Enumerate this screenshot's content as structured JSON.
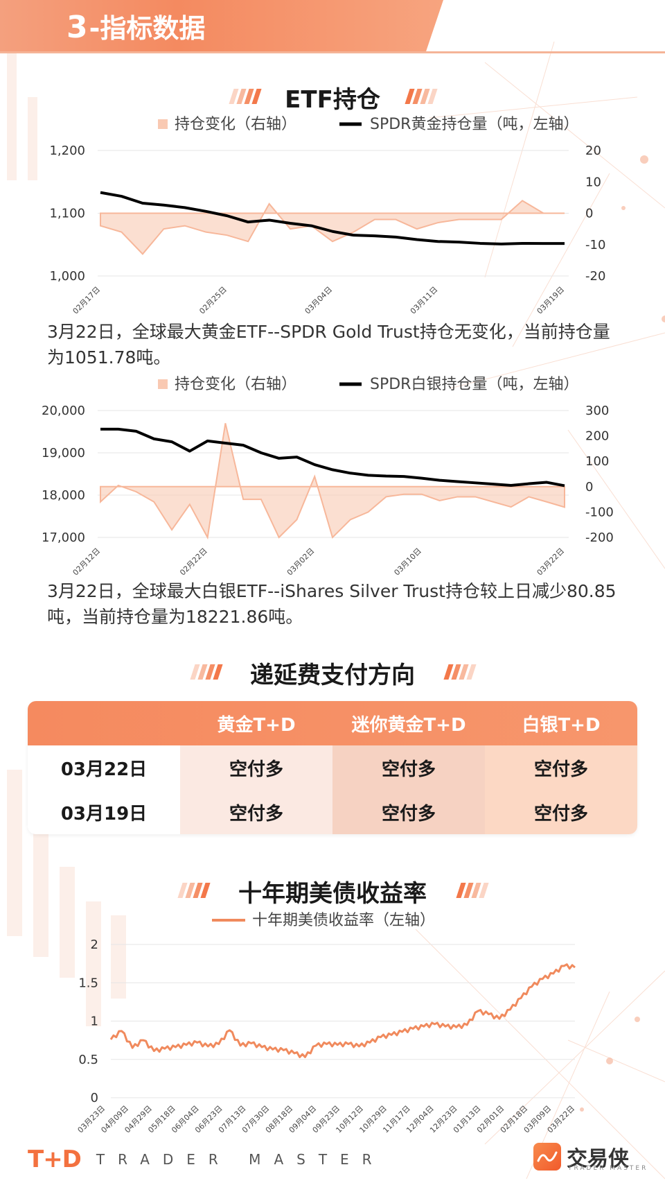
{
  "header": {
    "section_number": "3",
    "section_title": "-指标数据"
  },
  "etf_section": {
    "title": "ETF持仓"
  },
  "gold_chart": {
    "legend": {
      "bar": "持仓变化（右轴）",
      "line": "SPDR黄金持仓量（吨，左轴）"
    },
    "caption": "3月22日，全球最大黄金ETF--SPDR Gold Trust持仓无变化，当前持仓量为1051.78吨。"
  },
  "silver_chart": {
    "legend": {
      "bar": "持仓变化（右轴）",
      "line": "SPDR白银持仓量（吨，左轴）"
    },
    "caption": "3月22日，全球最大白银ETF--iShares Silver Trust持仓较上日减少80.85吨，当前持仓量为18221.86吨。"
  },
  "rollover": {
    "title": "递延费支付方向",
    "columns": [
      "",
      "黄金T+D",
      "迷你黄金T+D",
      "白银T+D"
    ],
    "rows": [
      [
        "03月22日",
        "空付多",
        "空付多",
        "空付多"
      ],
      [
        "03月19日",
        "空付多",
        "空付多",
        "空付多"
      ]
    ]
  },
  "yield_section": {
    "title": "十年期美债收益率",
    "legend": "十年期美债收益率（左轴）"
  },
  "footer": {
    "td_logo": "T+D",
    "td_text": "TRADER MASTER",
    "brand_name": "交易侠",
    "brand_sub": "TRADER MASTER",
    "brand_icon": "chart-swoosh-icon"
  },
  "colors": {
    "accent": "#f58a5f",
    "area": "#f9c9b2",
    "area_stroke": "#f7b79a",
    "line": "#000000",
    "yield_line": "#f08a5d"
  },
  "chart_data": [
    {
      "type": "area+line",
      "title": "",
      "legend": [
        "持仓变化（右轴）",
        "SPDR黄金持仓量（吨，左轴）"
      ],
      "x": [
        "02月17日",
        "02月18日",
        "02月19日",
        "02月22日",
        "02月23日",
        "02月24日",
        "02月25日",
        "02月26日",
        "03月01日",
        "03月02日",
        "03月03日",
        "03月04日",
        "03月05日",
        "03月08日",
        "03月09日",
        "03月10日",
        "03月11日",
        "03月12日",
        "03月15日",
        "03月16日",
        "03月17日",
        "03月18日",
        "03月19日"
      ],
      "xticks": [
        "02月17日",
        "02月25日",
        "03月04日",
        "03月11日",
        "03月19日"
      ],
      "y_left_lim": [
        1000,
        1200
      ],
      "y_left_ticks": [
        "1,000",
        "1,100",
        "1,200"
      ],
      "y_right_lim": [
        -20,
        20
      ],
      "y_right_ticks": [
        "-20",
        "-10",
        "0",
        "10",
        "20"
      ],
      "series": [
        {
          "name": "持仓变化（右轴）",
          "axis": "right",
          "values": [
            -4,
            -6,
            -13,
            -5,
            -4,
            -6,
            -7,
            -9,
            3,
            -5,
            -4,
            -9,
            -6,
            -2,
            -2,
            -5,
            -3,
            -2,
            -2,
            -2,
            4,
            0,
            0
          ]
        },
        {
          "name": "SPDR黄金持仓量（吨，左轴）",
          "axis": "left",
          "values": [
            1133,
            1127,
            1116,
            1113,
            1109,
            1103,
            1096,
            1086,
            1089,
            1084,
            1080,
            1071,
            1065,
            1064,
            1062,
            1058,
            1055,
            1054,
            1052,
            1051,
            1052,
            1051.78,
            1051.78
          ]
        }
      ]
    },
    {
      "type": "area+line",
      "title": "",
      "legend": [
        "持仓变化（右轴）",
        "SPDR白银持仓量（吨，左轴）"
      ],
      "x": [
        "02月12日",
        "02月15日",
        "02月16日",
        "02月17日",
        "02月18日",
        "02月19日",
        "02月22日",
        "02月23日",
        "02月24日",
        "02月25日",
        "02月26日",
        "03月01日",
        "03月02日",
        "03月03日",
        "03月04日",
        "03月05日",
        "03月08日",
        "03月09日",
        "03月10日",
        "03月11日",
        "03月12日",
        "03月15日",
        "03月16日",
        "03月17日",
        "03月18日",
        "03月19日",
        "03月22日"
      ],
      "xticks": [
        "02月12日",
        "02月22日",
        "03月02日",
        "03月10日",
        "03月22日"
      ],
      "y_left_lim": [
        17000,
        20000
      ],
      "y_left_ticks": [
        "17,000",
        "18,000",
        "19,000",
        "20,000"
      ],
      "y_right_lim": [
        -200,
        300
      ],
      "y_right_ticks": [
        "-200",
        "-100",
        "0",
        "100",
        "200",
        "300"
      ],
      "series": [
        {
          "name": "持仓变化（右轴）",
          "axis": "right",
          "values": [
            -60,
            5,
            -20,
            -60,
            -170,
            -70,
            -200,
            250,
            -50,
            -50,
            -200,
            -130,
            40,
            -200,
            -130,
            -100,
            -40,
            -30,
            -30,
            -55,
            -40,
            -40,
            -60,
            -80,
            -40,
            -60,
            -80.85
          ]
        },
        {
          "name": "SPDR白银持仓量（吨，左轴）",
          "axis": "left",
          "values": [
            19560,
            19560,
            19510,
            19330,
            19260,
            19040,
            19280,
            19230,
            19180,
            19000,
            18870,
            18900,
            18720,
            18600,
            18520,
            18470,
            18450,
            18440,
            18400,
            18350,
            18320,
            18290,
            18260,
            18230,
            18270,
            18302.71,
            18221.86
          ]
        }
      ]
    },
    {
      "type": "line",
      "title": "十年期美债收益率",
      "legend": [
        "十年期美债收益率（左轴）"
      ],
      "xticks": [
        "03月23日",
        "04月09日",
        "04月29日",
        "05月18日",
        "06月04日",
        "06月23日",
        "07月13日",
        "07月30日",
        "08月18日",
        "09月04日",
        "09月23日",
        "10月12日",
        "10月29日",
        "11月17日",
        "12月04日",
        "12月23日",
        "01月13日",
        "02月01日",
        "02月18日",
        "03月09日",
        "03月22日"
      ],
      "y_lim": [
        0,
        2
      ],
      "y_ticks": [
        "0",
        "0.5",
        "1",
        "1.5",
        "2"
      ],
      "series": [
        {
          "name": "十年期美债收益率（左轴）",
          "values": [
            0.76,
            0.87,
            0.65,
            0.75,
            0.61,
            0.64,
            0.66,
            0.69,
            0.72,
            0.67,
            0.7,
            0.88,
            0.68,
            0.71,
            0.66,
            0.63,
            0.62,
            0.58,
            0.53,
            0.68,
            0.7,
            0.69,
            0.7,
            0.67,
            0.72,
            0.79,
            0.82,
            0.86,
            0.9,
            0.93,
            0.96,
            0.93,
            0.92,
            0.95,
            1.13,
            1.09,
            1.03,
            1.15,
            1.3,
            1.45,
            1.55,
            1.62,
            1.72,
            1.7
          ]
        }
      ]
    }
  ]
}
